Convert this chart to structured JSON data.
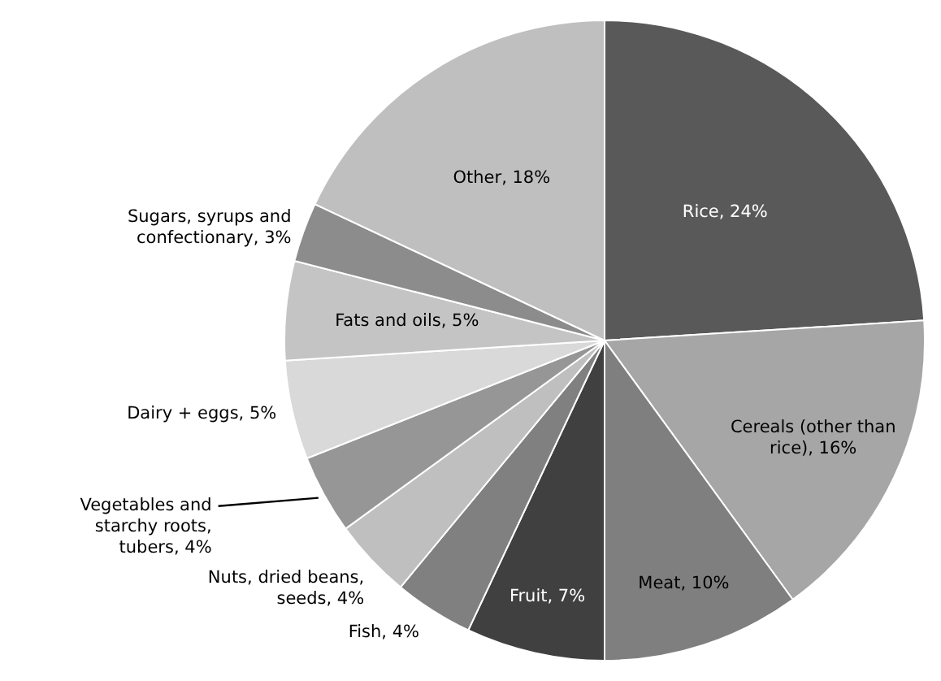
{
  "chart_data": {
    "type": "pie",
    "categories": [
      "Rice",
      "Cereals (other than rice)",
      "Meat",
      "Fruit",
      "Fish",
      "Nuts, dried beans, seeds",
      "Vegetables and starchy roots, tubers",
      "Dairy + eggs",
      "Fats and oils",
      "Sugars, syrups and confectionary",
      "Other"
    ],
    "values": [
      24,
      16,
      10,
      7,
      4,
      4,
      4,
      5,
      5,
      3,
      18
    ],
    "value_labels": [
      "24%",
      "16%",
      "10%",
      "7%",
      "4%",
      "4%",
      "4%",
      "5%",
      "5%",
      "3%",
      "18%"
    ],
    "colors": [
      "#595959",
      "#a6a6a6",
      "#7f7f7f",
      "#404040",
      "#808080",
      "#bfbfbf",
      "#969696",
      "#d9d9d9",
      "#c4c4c4",
      "#8c8c8c",
      "#bfbfbf"
    ],
    "legend": false
  }
}
